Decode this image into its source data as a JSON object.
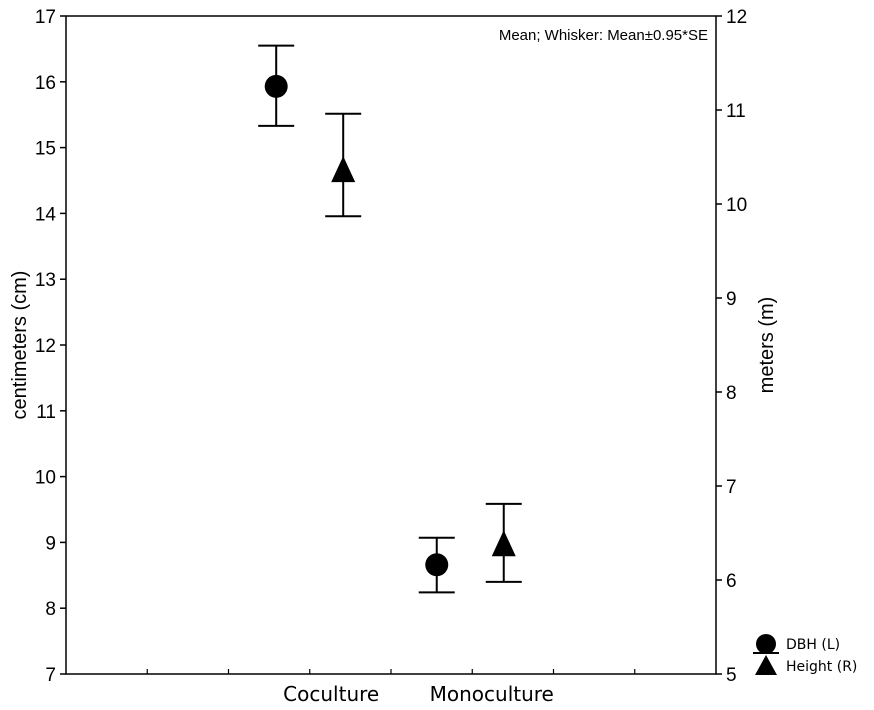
{
  "chart_data": {
    "type": "scatter",
    "annotation": "Mean; Whisker: Mean±0.95*SE",
    "categories": [
      "Coculture",
      "Monoculture"
    ],
    "y_left": {
      "label": "centimeters (cm)",
      "range": [
        7,
        17
      ],
      "ticks": [
        "7",
        "8",
        "9",
        "10",
        "11",
        "12",
        "13",
        "14",
        "15",
        "16",
        "17"
      ]
    },
    "y_right": {
      "label": "meters (m)",
      "range": [
        5,
        12
      ],
      "ticks": [
        "5",
        "6",
        "7",
        "8",
        "9",
        "10",
        "11",
        "12"
      ]
    },
    "grid": false,
    "legend_position": "outside-bottom-right",
    "series": [
      {
        "name": "DBH (L)",
        "axis": "left",
        "marker": "circle",
        "points": [
          {
            "category": "Coculture",
            "mean": 15.93,
            "low": 15.33,
            "high": 16.55
          },
          {
            "category": "Monoculture",
            "mean": 8.66,
            "low": 8.24,
            "high": 9.07
          }
        ]
      },
      {
        "name": "Height (R)",
        "axis": "right",
        "marker": "triangle",
        "points": [
          {
            "category": "Coculture",
            "mean": 10.35,
            "low": 9.87,
            "high": 10.96
          },
          {
            "category": "Monoculture",
            "mean": 6.37,
            "low": 5.98,
            "high": 6.81
          }
        ]
      }
    ],
    "colors": {
      "marker": "#000000",
      "axis": "#000000",
      "background": "#ffffff"
    }
  }
}
